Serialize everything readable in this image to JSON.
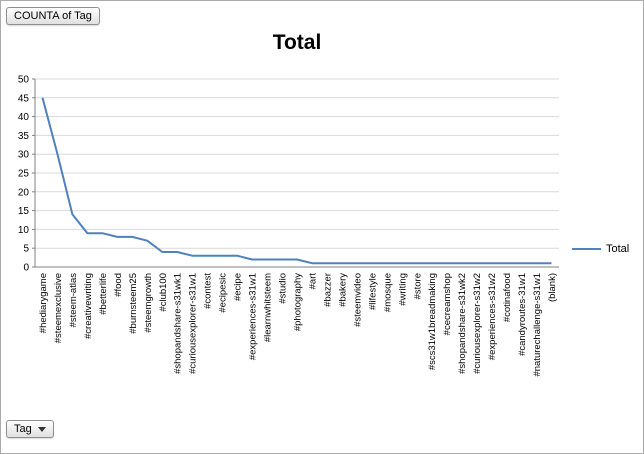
{
  "window": {
    "background": "#ffffff",
    "border_color": "#ababab"
  },
  "pivot_controls": {
    "value_field_button": "COUNTA of Tag",
    "category_field_button": "Tag"
  },
  "chart_data": {
    "type": "line",
    "title": "Total",
    "xlabel": "",
    "ylabel": "",
    "ylim": [
      0,
      50
    ],
    "ytick_step": 5,
    "grid": true,
    "legend_position": "right",
    "categories": [
      "#hediarygame",
      "#steemexclusive",
      "#steem-atlas",
      "#creativewriting",
      "#betterlife",
      "#food",
      "#burnsteem25",
      "#steemgrowth",
      "#club100",
      "#shopandshare-s31wk1",
      "#curiousexplorer-s31w1",
      "#contest",
      "#ecipesic",
      "#ecipe",
      "#experiences-s31w1",
      "#learnwhitsteem",
      "#studio",
      "#photography",
      "#art",
      "#bazzer",
      "#bakery",
      "#steemvideo",
      "#lifestyle",
      "#mosque",
      "#writing",
      "#store",
      "#scs31w1breadmaking",
      "#cecreamshop",
      "#shopandshare-s31wk2",
      "#curiousexplorer-s31w2",
      "#experiences-s31w2",
      "#cotinafood",
      "#candyroutes-31w1",
      "#naturechallenge-s31w1",
      "(blank)"
    ],
    "series": [
      {
        "name": "Total",
        "color": "#4f81bd",
        "values": [
          45,
          30,
          14,
          9,
          9,
          8,
          8,
          7,
          4,
          4,
          3,
          3,
          3,
          3,
          2,
          2,
          2,
          2,
          1,
          1,
          1,
          1,
          1,
          1,
          1,
          1,
          1,
          1,
          1,
          1,
          1,
          1,
          1,
          1,
          1
        ]
      }
    ]
  }
}
